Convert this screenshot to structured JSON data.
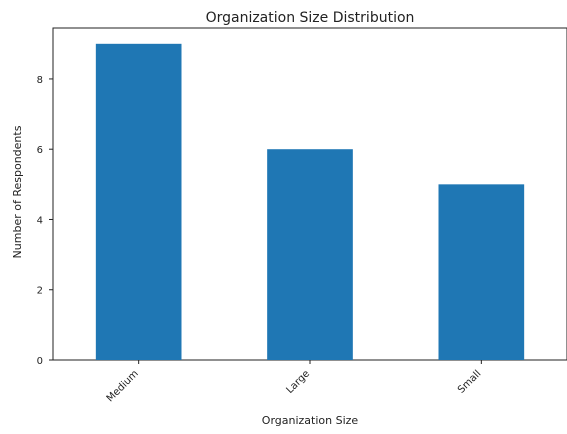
{
  "chart_data": {
    "type": "bar",
    "title": "Organization Size Distribution",
    "xlabel": "Organization Size",
    "ylabel": "Number of Respondents",
    "categories": [
      "Medium",
      "Large",
      "Small"
    ],
    "values": [
      9,
      6,
      5
    ],
    "ylim": [
      0,
      9.45
    ],
    "yticks": [
      0,
      2,
      4,
      6,
      8
    ],
    "bar_color": "#1f77b4",
    "grid": false,
    "x_tick_rotation": 45
  }
}
